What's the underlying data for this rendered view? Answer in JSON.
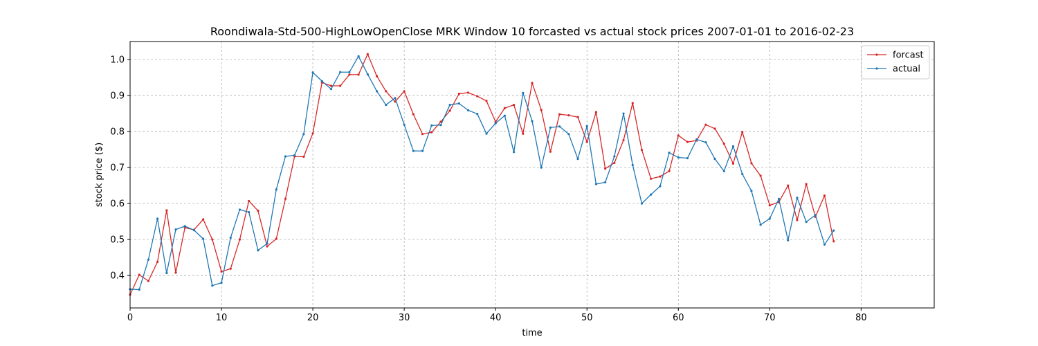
{
  "chart_data": {
    "type": "line",
    "title": "Roondiwala-Std-500-HighLowOpenClose MRK Window 10 forcasted vs actual stock prices 2007-01-01 to 2016-02-23",
    "xlabel": "time",
    "ylabel": "stock price ($)",
    "xlim": [
      0,
      88
    ],
    "ylim": [
      0.31,
      1.05
    ],
    "xticks": [
      0,
      10,
      20,
      30,
      40,
      50,
      60,
      70,
      80
    ],
    "yticks": [
      0.4,
      0.5,
      0.6,
      0.7,
      0.8,
      0.9,
      1.0
    ],
    "xtick_labels": [
      "0",
      "10",
      "20",
      "30",
      "40",
      "50",
      "60",
      "70",
      "80"
    ],
    "ytick_labels": [
      "0.4",
      "0.5",
      "0.6",
      "0.7",
      "0.8",
      "0.9",
      "1.0"
    ],
    "grid": true,
    "legend_position": "top-right",
    "series": [
      {
        "name": "forcast",
        "color": "#d62728",
        "values": [
          0.347,
          0.402,
          0.385,
          0.438,
          0.581,
          0.408,
          0.533,
          0.527,
          0.556,
          0.5,
          0.411,
          0.419,
          0.5,
          0.607,
          0.58,
          0.481,
          0.502,
          0.613,
          0.731,
          0.73,
          0.795,
          0.936,
          0.927,
          0.927,
          0.958,
          0.958,
          1.015,
          0.954,
          0.912,
          0.883,
          0.912,
          0.848,
          0.793,
          0.798,
          0.827,
          0.858,
          0.905,
          0.908,
          0.898,
          0.885,
          0.827,
          0.865,
          0.874,
          0.794,
          0.935,
          0.86,
          0.744,
          0.848,
          0.845,
          0.84,
          0.771,
          0.854,
          0.697,
          0.713,
          0.776,
          0.879,
          0.749,
          0.669,
          0.675,
          0.69,
          0.789,
          0.771,
          0.775,
          0.819,
          0.808,
          0.766,
          0.711,
          0.799,
          0.712,
          0.677,
          0.595,
          0.604,
          0.65,
          0.554,
          0.654,
          0.563,
          0.622,
          0.495
        ]
      },
      {
        "name": "actual",
        "color": "#1f77b4",
        "values": [
          0.362,
          0.361,
          0.444,
          0.558,
          0.407,
          0.528,
          0.537,
          0.526,
          0.502,
          0.372,
          0.38,
          0.505,
          0.583,
          0.576,
          0.47,
          0.489,
          0.639,
          0.731,
          0.734,
          0.793,
          0.964,
          0.94,
          0.918,
          0.965,
          0.965,
          1.009,
          0.959,
          0.912,
          0.874,
          0.893,
          0.819,
          0.746,
          0.746,
          0.817,
          0.818,
          0.874,
          0.878,
          0.859,
          0.849,
          0.794,
          0.823,
          0.844,
          0.743,
          0.907,
          0.829,
          0.7,
          0.811,
          0.814,
          0.793,
          0.724,
          0.815,
          0.654,
          0.659,
          0.731,
          0.85,
          0.707,
          0.6,
          0.625,
          0.648,
          0.741,
          0.728,
          0.726,
          0.778,
          0.77,
          0.724,
          0.69,
          0.759,
          0.682,
          0.635,
          0.541,
          0.558,
          0.613,
          0.498,
          0.616,
          0.549,
          0.568,
          0.486,
          0.525
        ]
      }
    ]
  }
}
